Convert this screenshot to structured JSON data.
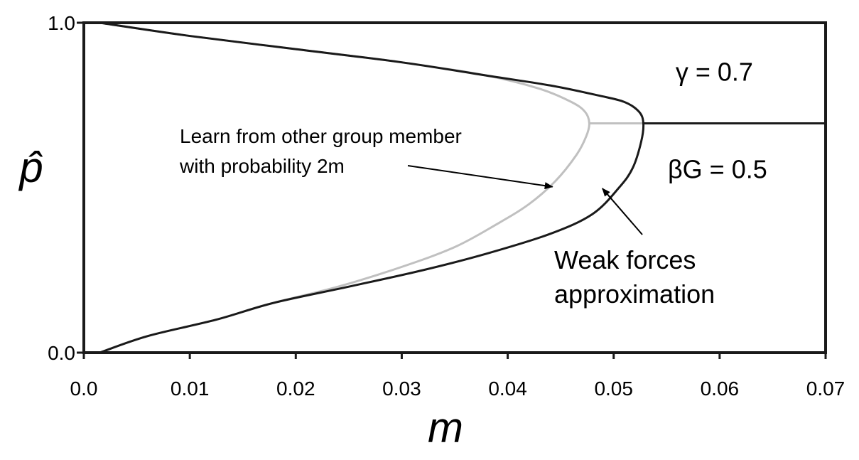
{
  "chart_data": {
    "type": "line",
    "title": "",
    "xlabel": "m",
    "ylabel": "p̂",
    "xlim": [
      0.0,
      0.07
    ],
    "ylim": [
      0.0,
      1.0
    ],
    "x_ticks": [
      {
        "value": 0.0,
        "label": "0.0"
      },
      {
        "value": 0.01,
        "label": "0.01"
      },
      {
        "value": 0.02,
        "label": "0.02"
      },
      {
        "value": 0.03,
        "label": "0.03"
      },
      {
        "value": 0.04,
        "label": "0.04"
      },
      {
        "value": 0.05,
        "label": "0.05"
      },
      {
        "value": 0.06,
        "label": "0.06"
      },
      {
        "value": 0.07,
        "label": "0.07"
      }
    ],
    "y_ticks": [
      {
        "value": 0.0,
        "label": "0.0"
      },
      {
        "value": 1.0,
        "label": "1.0"
      }
    ],
    "grid": false,
    "series": [
      {
        "color": "#c0c0c0",
        "points": [
          [
            0.0015,
            0.0
          ],
          [
            0.006,
            0.05
          ],
          [
            0.0125,
            0.1
          ],
          [
            0.0178,
            0.15
          ],
          [
            0.024,
            0.2
          ],
          [
            0.03,
            0.26
          ],
          [
            0.035,
            0.32
          ],
          [
            0.039,
            0.39
          ],
          [
            0.042,
            0.45
          ],
          [
            0.0445,
            0.52
          ],
          [
            0.0465,
            0.6
          ],
          [
            0.0474,
            0.655
          ],
          [
            0.0477,
            0.695
          ],
          [
            0.0473,
            0.73
          ],
          [
            0.046,
            0.76
          ],
          [
            0.043,
            0.8
          ],
          [
            0.038,
            0.84
          ],
          [
            0.03,
            0.88
          ],
          [
            0.02,
            0.92
          ],
          [
            0.01,
            0.96
          ],
          [
            0.0015,
            1.0
          ]
        ],
        "branch": {
          "x": [
            0.0477,
            0.0528
          ],
          "y": 0.695
        }
      },
      {
        "color": "#1a1a1a",
        "points": [
          [
            0.0015,
            0.0
          ],
          [
            0.006,
            0.05
          ],
          [
            0.0125,
            0.1
          ],
          [
            0.0178,
            0.15
          ],
          [
            0.025,
            0.2
          ],
          [
            0.032,
            0.25
          ],
          [
            0.038,
            0.3
          ],
          [
            0.044,
            0.36
          ],
          [
            0.048,
            0.42
          ],
          [
            0.0505,
            0.5
          ],
          [
            0.0518,
            0.56
          ],
          [
            0.0526,
            0.64
          ],
          [
            0.0528,
            0.695
          ],
          [
            0.0524,
            0.73
          ],
          [
            0.051,
            0.76
          ],
          [
            0.0485,
            0.78
          ],
          [
            0.044,
            0.81
          ],
          [
            0.038,
            0.84
          ],
          [
            0.03,
            0.88
          ],
          [
            0.02,
            0.92
          ],
          [
            0.01,
            0.96
          ],
          [
            0.0015,
            1.0
          ]
        ],
        "branch": {
          "x": [
            0.0528,
            0.07
          ],
          "y": 0.695
        }
      }
    ],
    "annotations": [
      {
        "lines": [
          "Learn from other group member",
          "with probability 2m"
        ],
        "arrow_to": {
          "x": 0.0445,
          "y": 0.52
        }
      },
      {
        "lines": [
          "Weak forces",
          "approximation"
        ],
        "arrow_to": {
          "x": 0.0488,
          "y": 0.515
        }
      },
      {
        "text": "γ = 0.7",
        "x": 0.0595,
        "y": 0.85
      },
      {
        "text": "βG = 0.5",
        "x": 0.0598,
        "y": 0.555
      }
    ]
  }
}
